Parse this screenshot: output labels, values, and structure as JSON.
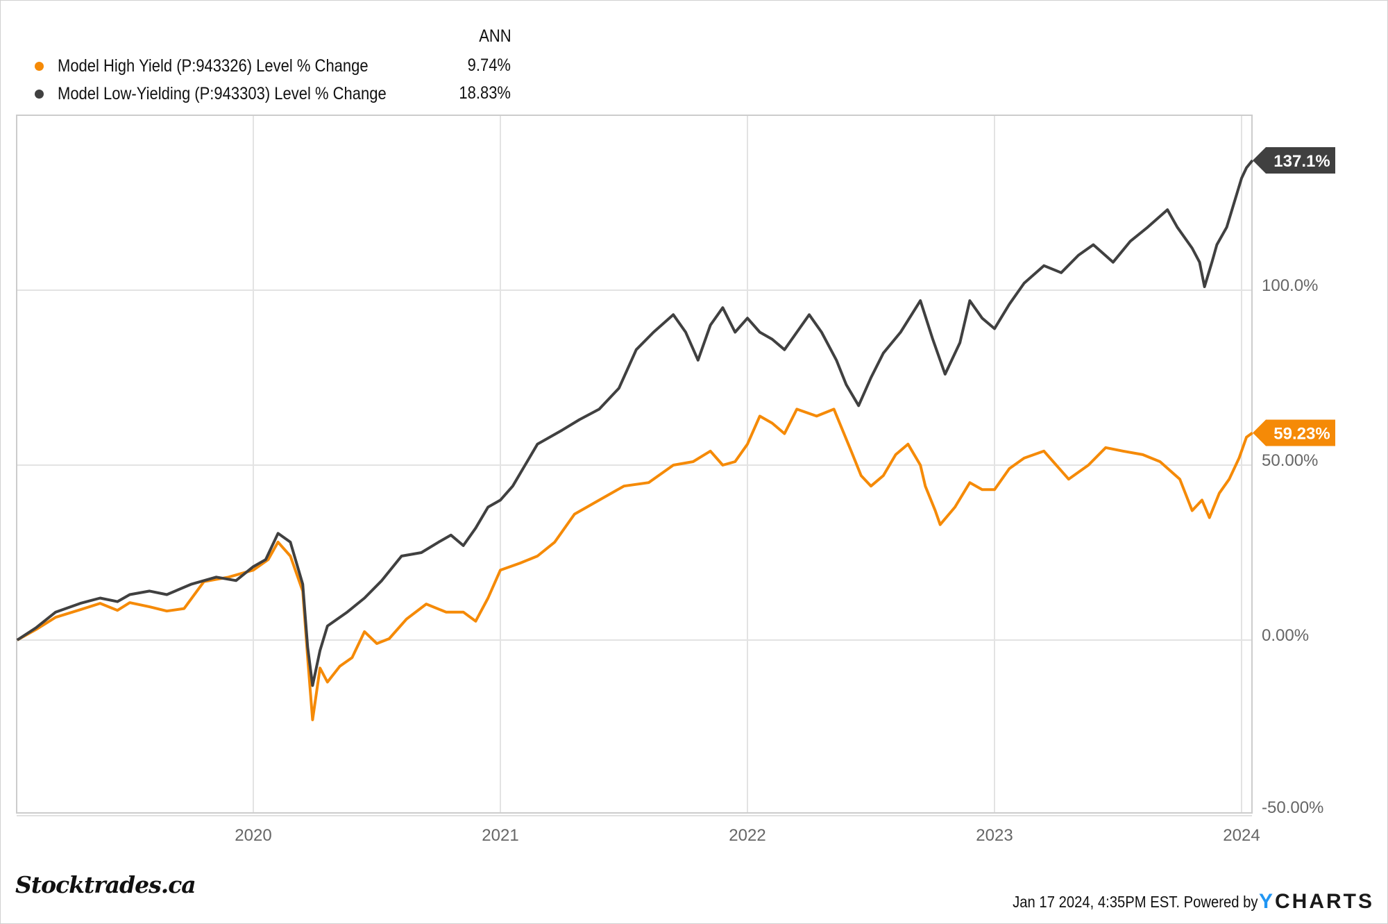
{
  "legend": {
    "column_header": "ANN",
    "items": [
      {
        "label": "Model High Yield (P:943326) Level % Change",
        "value": "9.74%",
        "color": "#f58a07"
      },
      {
        "label": "Model Low-Yielding (P:943303) Level % Change",
        "value": "18.83%",
        "color": "#404040"
      }
    ]
  },
  "footer": {
    "brand": "Stocktrades.ca",
    "timestamp": "Jan 17 2024, 4:35PM EST. Powered by",
    "logo_y": "Y",
    "logo_rest": "CHARTS"
  },
  "chart_data": {
    "type": "line",
    "title": "",
    "xlabel": "",
    "ylabel": "",
    "xlim": [
      2019.044,
      2024.044
    ],
    "ylim": [
      -50,
      150
    ],
    "x_ticks": [
      2020,
      2021,
      2022,
      2023,
      2024
    ],
    "x_tick_labels": [
      "2020",
      "2021",
      "2022",
      "2023",
      "2024"
    ],
    "y_ticks": [
      -50,
      0,
      50,
      100
    ],
    "y_tick_labels": [
      "-50.00%",
      "0.00%",
      "50.00%",
      "100.0%"
    ],
    "grid": true,
    "legend_position": "top-left",
    "series": [
      {
        "name": "Model High Yield (P:943326) Level % Change",
        "color": "#f58a07",
        "end_label": "59.23%",
        "points": [
          [
            2019.044,
            0
          ],
          [
            2019.12,
            3
          ],
          [
            2019.2,
            6.5
          ],
          [
            2019.3,
            8.7
          ],
          [
            2019.38,
            10.5
          ],
          [
            2019.45,
            8.5
          ],
          [
            2019.5,
            10.7
          ],
          [
            2019.58,
            9.5
          ],
          [
            2019.65,
            8.3
          ],
          [
            2019.72,
            9
          ],
          [
            2019.8,
            16.7
          ],
          [
            2019.9,
            18
          ],
          [
            2020.0,
            20
          ],
          [
            2020.06,
            23
          ],
          [
            2020.1,
            28
          ],
          [
            2020.15,
            24
          ],
          [
            2020.2,
            14
          ],
          [
            2020.22,
            -5
          ],
          [
            2020.24,
            -22.8
          ],
          [
            2020.27,
            -8
          ],
          [
            2020.3,
            -12
          ],
          [
            2020.35,
            -7.5
          ],
          [
            2020.4,
            -5
          ],
          [
            2020.45,
            2.4
          ],
          [
            2020.5,
            -1
          ],
          [
            2020.55,
            0.4
          ],
          [
            2020.62,
            6
          ],
          [
            2020.7,
            10.3
          ],
          [
            2020.78,
            8
          ],
          [
            2020.85,
            8
          ],
          [
            2020.9,
            5.4
          ],
          [
            2020.95,
            12
          ],
          [
            2021.0,
            20
          ],
          [
            2021.08,
            22
          ],
          [
            2021.15,
            24
          ],
          [
            2021.22,
            28
          ],
          [
            2021.3,
            36
          ],
          [
            2021.4,
            40
          ],
          [
            2021.5,
            44
          ],
          [
            2021.6,
            45
          ],
          [
            2021.7,
            50
          ],
          [
            2021.78,
            51
          ],
          [
            2021.85,
            54
          ],
          [
            2021.9,
            50
          ],
          [
            2021.95,
            51
          ],
          [
            2022.0,
            56
          ],
          [
            2022.05,
            64
          ],
          [
            2022.1,
            62
          ],
          [
            2022.15,
            59
          ],
          [
            2022.2,
            66
          ],
          [
            2022.28,
            64
          ],
          [
            2022.35,
            66
          ],
          [
            2022.42,
            54
          ],
          [
            2022.46,
            47
          ],
          [
            2022.5,
            44
          ],
          [
            2022.55,
            47
          ],
          [
            2022.6,
            53
          ],
          [
            2022.65,
            56
          ],
          [
            2022.7,
            50
          ],
          [
            2022.72,
            44
          ],
          [
            2022.76,
            37
          ],
          [
            2022.78,
            33
          ],
          [
            2022.84,
            38
          ],
          [
            2022.9,
            45
          ],
          [
            2022.95,
            43
          ],
          [
            2023.0,
            43
          ],
          [
            2023.06,
            49
          ],
          [
            2023.12,
            52
          ],
          [
            2023.2,
            54
          ],
          [
            2023.25,
            50
          ],
          [
            2023.3,
            46
          ],
          [
            2023.38,
            50
          ],
          [
            2023.45,
            55
          ],
          [
            2023.52,
            54
          ],
          [
            2023.6,
            53
          ],
          [
            2023.67,
            51
          ],
          [
            2023.75,
            46
          ],
          [
            2023.8,
            37
          ],
          [
            2023.84,
            40
          ],
          [
            2023.87,
            35
          ],
          [
            2023.91,
            42
          ],
          [
            2023.95,
            46
          ],
          [
            2023.99,
            52
          ],
          [
            2024.02,
            58
          ],
          [
            2024.044,
            59.23
          ]
        ]
      },
      {
        "name": "Model Low-Yielding (P:943303) Level % Change",
        "color": "#404040",
        "end_label": "137.1%",
        "points": [
          [
            2019.044,
            0
          ],
          [
            2019.12,
            3.5
          ],
          [
            2019.2,
            8
          ],
          [
            2019.3,
            10.5
          ],
          [
            2019.38,
            12
          ],
          [
            2019.45,
            11
          ],
          [
            2019.5,
            13
          ],
          [
            2019.58,
            14
          ],
          [
            2019.65,
            13
          ],
          [
            2019.75,
            16
          ],
          [
            2019.85,
            18
          ],
          [
            2019.93,
            17
          ],
          [
            2020.0,
            21
          ],
          [
            2020.05,
            23
          ],
          [
            2020.1,
            30.5
          ],
          [
            2020.15,
            28
          ],
          [
            2020.2,
            16
          ],
          [
            2020.22,
            -2
          ],
          [
            2020.24,
            -13
          ],
          [
            2020.27,
            -3
          ],
          [
            2020.3,
            4
          ],
          [
            2020.38,
            8
          ],
          [
            2020.45,
            12
          ],
          [
            2020.52,
            17
          ],
          [
            2020.6,
            24
          ],
          [
            2020.68,
            25
          ],
          [
            2020.75,
            28
          ],
          [
            2020.8,
            30
          ],
          [
            2020.85,
            27
          ],
          [
            2020.9,
            32
          ],
          [
            2020.95,
            38
          ],
          [
            2021.0,
            40
          ],
          [
            2021.05,
            44
          ],
          [
            2021.1,
            50
          ],
          [
            2021.15,
            56
          ],
          [
            2021.25,
            60
          ],
          [
            2021.32,
            63
          ],
          [
            2021.4,
            66
          ],
          [
            2021.48,
            72
          ],
          [
            2021.55,
            83
          ],
          [
            2021.62,
            88
          ],
          [
            2021.7,
            93
          ],
          [
            2021.75,
            88
          ],
          [
            2021.8,
            80
          ],
          [
            2021.85,
            90
          ],
          [
            2021.9,
            95
          ],
          [
            2021.95,
            88
          ],
          [
            2022.0,
            92
          ],
          [
            2022.05,
            88
          ],
          [
            2022.1,
            86
          ],
          [
            2022.15,
            83
          ],
          [
            2022.2,
            88
          ],
          [
            2022.25,
            93
          ],
          [
            2022.3,
            88
          ],
          [
            2022.36,
            80
          ],
          [
            2022.4,
            73
          ],
          [
            2022.45,
            67
          ],
          [
            2022.5,
            75
          ],
          [
            2022.55,
            82
          ],
          [
            2022.62,
            88
          ],
          [
            2022.7,
            97
          ],
          [
            2022.75,
            86
          ],
          [
            2022.8,
            76
          ],
          [
            2022.86,
            85
          ],
          [
            2022.9,
            97
          ],
          [
            2022.95,
            92
          ],
          [
            2023.0,
            89
          ],
          [
            2023.06,
            96
          ],
          [
            2023.12,
            102
          ],
          [
            2023.2,
            107
          ],
          [
            2023.27,
            105
          ],
          [
            2023.34,
            110
          ],
          [
            2023.4,
            113
          ],
          [
            2023.48,
            108
          ],
          [
            2023.55,
            114
          ],
          [
            2023.62,
            118
          ],
          [
            2023.7,
            123
          ],
          [
            2023.74,
            118
          ],
          [
            2023.8,
            112
          ],
          [
            2023.83,
            108
          ],
          [
            2023.85,
            101
          ],
          [
            2023.88,
            108
          ],
          [
            2023.9,
            113
          ],
          [
            2023.94,
            118
          ],
          [
            2023.97,
            125
          ],
          [
            2024.0,
            132
          ],
          [
            2024.02,
            135
          ],
          [
            2024.044,
            137.1
          ]
        ]
      }
    ]
  }
}
